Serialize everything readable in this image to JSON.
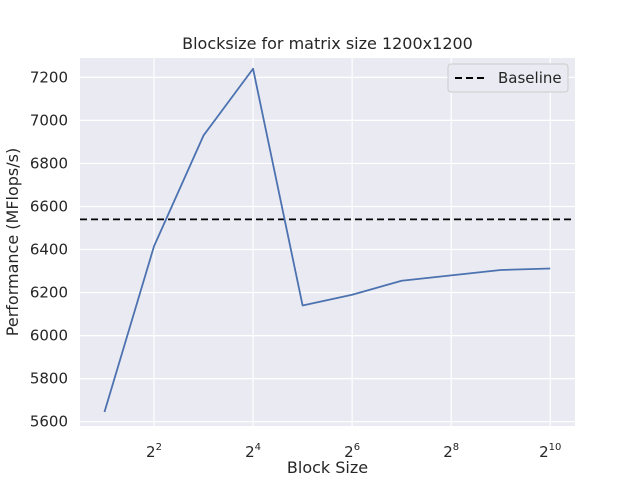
{
  "chart_data": {
    "type": "line",
    "title": "Blocksize for matrix size 1200x1200",
    "xlabel": "Block Size",
    "ylabel": "Performance (MFlops/s)",
    "x_scale": "log2",
    "x_tick_bases": [
      "2",
      "2",
      "2",
      "2",
      "2"
    ],
    "x_tick_exponents": [
      "2",
      "4",
      "6",
      "8",
      "10"
    ],
    "x_tick_values": [
      4,
      16,
      64,
      256,
      1024
    ],
    "y_ticks": [
      "5600",
      "5800",
      "6000",
      "6200",
      "6400",
      "6600",
      "6800",
      "7000",
      "7200"
    ],
    "y_tick_values": [
      5600,
      5800,
      6000,
      6200,
      6400,
      6600,
      6800,
      7000,
      7200
    ],
    "xlim": [
      1.42,
      1448
    ],
    "ylim": [
      5580,
      7290
    ],
    "grid": true,
    "legend_position": "top-right",
    "series": [
      {
        "x": [
          2,
          4,
          8,
          16,
          32,
          64,
          128,
          256,
          512,
          1024
        ],
        "y": [
          5645,
          6415,
          6930,
          7240,
          6140,
          6190,
          6255,
          6280,
          6305,
          6312
        ],
        "color": "#4c72b0"
      }
    ],
    "baseline": {
      "name": "Baseline",
      "value": 6540,
      "color": "#000000",
      "style": "dashed"
    },
    "colors": {
      "plot_background": "#eaeaf2",
      "grid": "#ffffff"
    }
  }
}
